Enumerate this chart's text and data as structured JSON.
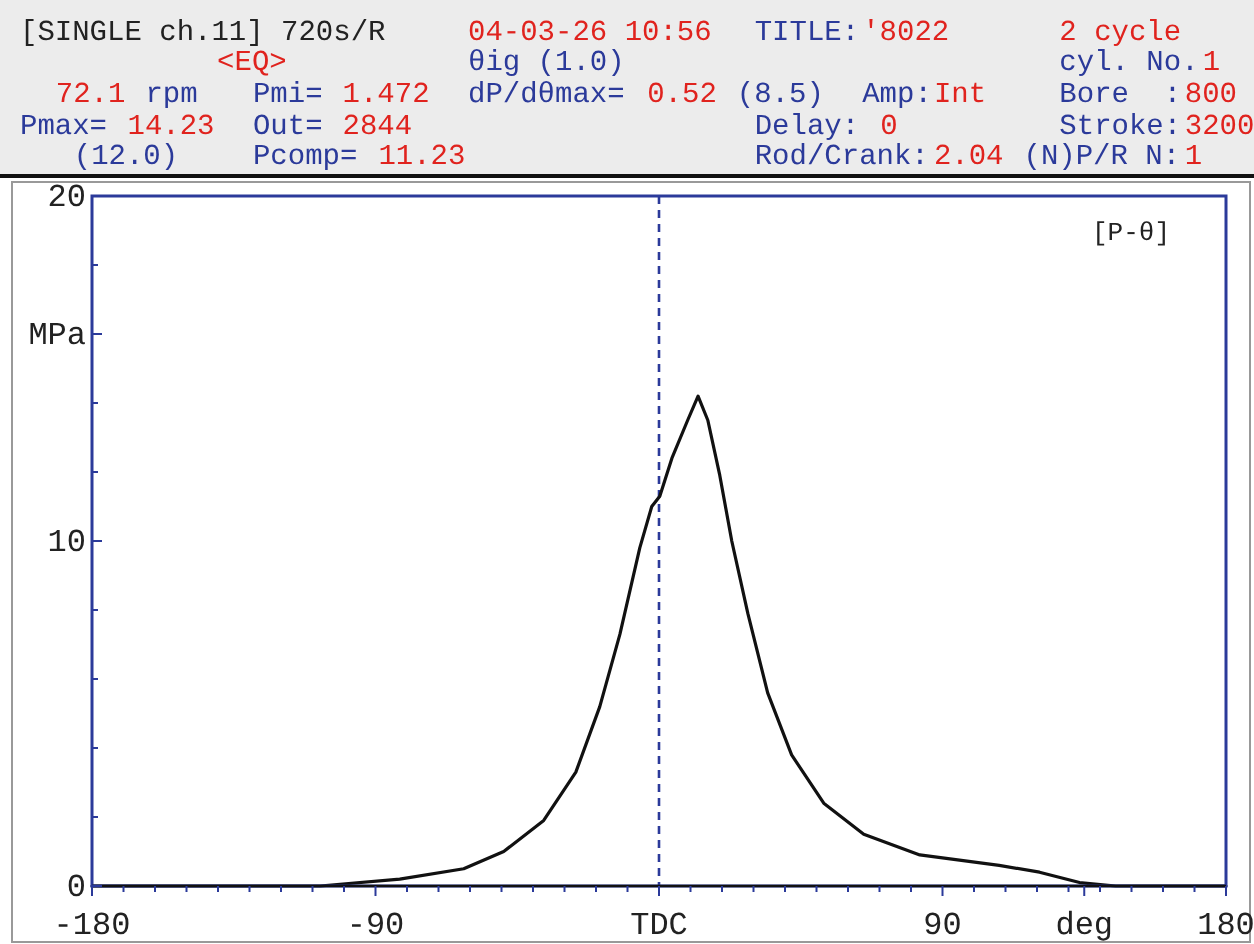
{
  "chart_data": {
    "type": "line",
    "annotations": [
      "[SINGLE ch.11] 720s/R",
      "04-03-26 10:56",
      "TITLE:",
      "'8022",
      "2 cycle",
      "<EQ>",
      "θig (1.0)",
      "cyl. No.",
      "1",
      "72.1",
      "rpm",
      "Pmi=",
      "1.472",
      "dP/dθmax=",
      "0.52",
      "(8.5)",
      "Amp:",
      "Int",
      "Bore  :",
      "800",
      "Pmax=",
      "14.23",
      "Out=",
      "2844",
      "Delay:",
      "0",
      "Stroke:",
      "3200",
      "(12.0)",
      "Pcomp=",
      "11.23",
      "Rod/Crank:",
      "2.04",
      "(N)P/R N:",
      "1",
      "[P-θ]"
    ],
    "x": [
      -180,
      -107.6,
      -82.3,
      -62,
      -49.3,
      -36.6,
      -26.4,
      -18.8,
      -12.4,
      -6.1,
      -2.3,
      0.25,
      4.1,
      9.1,
      12.4,
      15.5,
      19.3,
      23.1,
      28.2,
      34.5,
      42.1,
      52.3,
      65,
      82.8,
      108,
      120.8,
      133.5,
      145,
      180
    ],
    "series": [
      {
        "color": "#111111",
        "values": [
          0,
          0,
          0.2,
          0.5,
          1.0,
          1.9,
          3.3,
          5.2,
          7.3,
          9.8,
          11.0,
          11.3,
          12.4,
          13.5,
          14.2,
          13.5,
          11.9,
          10.0,
          7.9,
          5.6,
          3.8,
          2.4,
          1.5,
          0.9,
          0.6,
          0.4,
          0.1,
          0,
          0
        ]
      }
    ],
    "xlim": [
      -180,
      180
    ],
    "xticks": [
      -180,
      {
        "value": -170,
        "label": null
      },
      {
        "value": -160,
        "label": null
      },
      {
        "value": -150,
        "label": null
      },
      {
        "value": -140,
        "label": null
      },
      {
        "value": -130,
        "label": null
      },
      {
        "value": -120,
        "label": null
      },
      {
        "value": -110,
        "label": null
      },
      {
        "value": -100,
        "label": null
      },
      -90,
      {
        "value": -80,
        "label": null
      },
      {
        "value": -70,
        "label": null
      },
      {
        "value": -60,
        "label": null
      },
      {
        "value": -50,
        "label": null
      },
      {
        "value": -40,
        "label": null
      },
      {
        "value": -30,
        "label": null
      },
      {
        "value": -20,
        "label": null
      },
      {
        "value": -10,
        "label": null
      },
      {
        "value": 0,
        "label": "TDC"
      },
      {
        "value": 10,
        "label": null
      },
      {
        "value": 20,
        "label": null
      },
      {
        "value": 30,
        "label": null
      },
      {
        "value": 40,
        "label": null
      },
      {
        "value": 50,
        "label": null
      },
      {
        "value": 60,
        "label": null
      },
      {
        "value": 70,
        "label": null
      },
      {
        "value": 80,
        "label": null
      },
      90,
      {
        "value": 100,
        "label": null
      },
      {
        "value": 110,
        "label": null
      },
      {
        "value": 120,
        "label": null
      },
      {
        "value": 130,
        "label": null
      },
      {
        "value": 135,
        "label": "deg"
      },
      {
        "value": 140,
        "label": null
      },
      {
        "value": 150,
        "label": null
      },
      {
        "value": 160,
        "label": null
      },
      {
        "value": 170,
        "label": null
      },
      180
    ],
    "ylim": [
      0,
      20
    ],
    "yticks": [
      0,
      {
        "value": 2,
        "label": null
      },
      {
        "value": 4,
        "label": null
      },
      {
        "value": 6,
        "label": null
      },
      {
        "value": 8,
        "label": null
      },
      10,
      {
        "value": 12,
        "label": null
      },
      {
        "value": 14,
        "label": null
      },
      {
        "value": 16,
        "label": "MPa"
      },
      {
        "value": 18,
        "label": null
      },
      20
    ],
    "ref_lines": [
      {
        "axis": "x",
        "value": 0,
        "color": "#2b3a9a",
        "line_style": "dashed"
      }
    ],
    "grid": false,
    "marker": "none",
    "line_style": "solid"
  }
}
